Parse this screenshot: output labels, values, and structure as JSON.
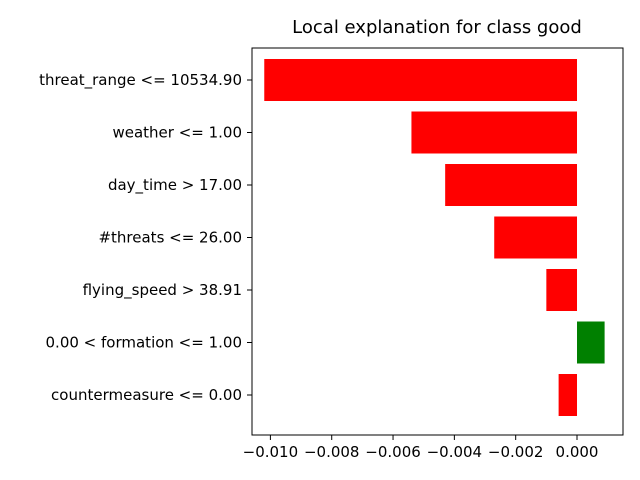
{
  "chart_data": {
    "type": "bar",
    "orientation": "horizontal",
    "title": "Local explanation for class good",
    "xlabel": "",
    "ylabel": "",
    "categories": [
      "threat_range <= 10534.90",
      "weather <= 1.00",
      "day_time > 17.00",
      "#threats <= 26.00",
      "flying_speed > 38.91",
      "0.00 < formation <= 1.00",
      "countermeasure <= 0.00"
    ],
    "values": [
      -0.0102,
      -0.0054,
      -0.0043,
      -0.0027,
      -0.001,
      0.0009,
      -0.0006
    ],
    "xlim": [
      -0.0106,
      0.0015
    ],
    "xticks": [
      -0.01,
      -0.008,
      -0.006,
      -0.004,
      -0.002,
      0.0
    ],
    "xtick_labels": [
      "−0.010",
      "−0.008",
      "−0.006",
      "−0.004",
      "−0.002",
      "0.000"
    ],
    "colors": {
      "negative": "#ff0000",
      "positive": "#008000"
    },
    "grid": false,
    "legend": "none"
  }
}
